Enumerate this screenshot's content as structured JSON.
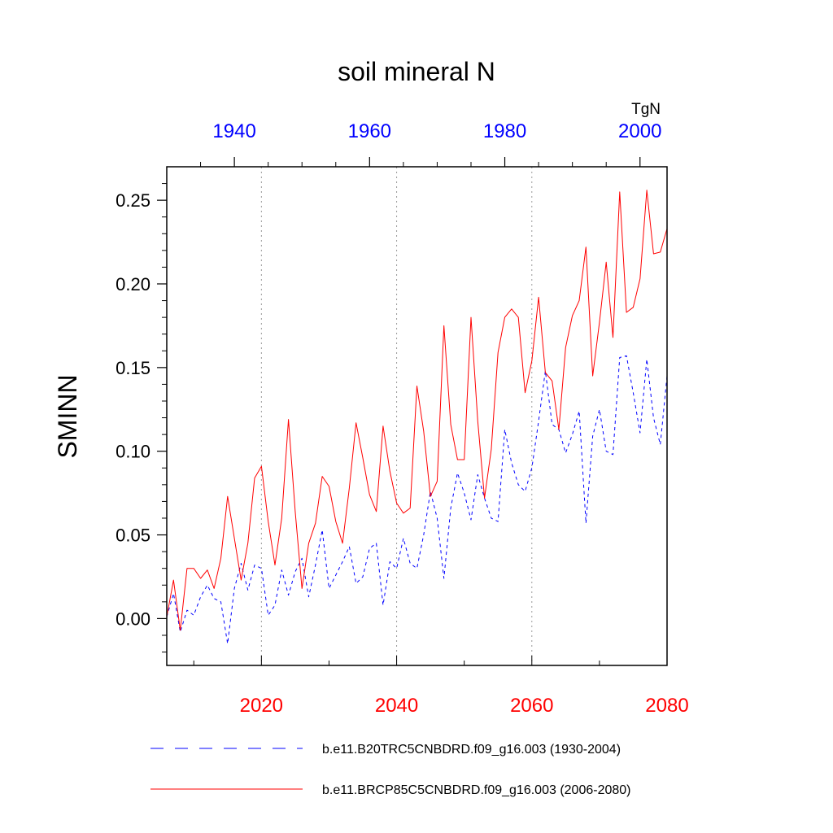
{
  "chart_data": {
    "type": "line",
    "title": "soil mineral N",
    "ylabel": "SMINN",
    "units": "TgN",
    "ylim": [
      -0.028,
      0.27
    ],
    "yticks": [
      0.0,
      0.05,
      0.1,
      0.15,
      0.2,
      0.25
    ],
    "ytick_labels": [
      "0.00",
      "0.05",
      "0.10",
      "0.15",
      "0.20",
      "0.25"
    ],
    "bottom_axis": {
      "range": [
        2006,
        2080
      ],
      "ticks": [
        2020,
        2040,
        2060,
        2080
      ],
      "tick_labels": [
        "2020",
        "2040",
        "2060",
        "2080"
      ],
      "color": "#ff0000"
    },
    "top_axis": {
      "range": [
        1930,
        2004
      ],
      "ticks": [
        1940,
        1960,
        1980,
        2000
      ],
      "tick_labels": [
        "1940",
        "1960",
        "1980",
        "2000"
      ],
      "color": "#0000ff"
    },
    "grid": "vertical dotted at bottom-axis ticks",
    "series": [
      {
        "name": "b.e11.B20TRC5CNBDRD.f09_g16.003 (1930-2004)",
        "axis": "top",
        "color": "#0000ff",
        "style": "dashed",
        "x_start": 1930,
        "values": [
          0.001,
          0.015,
          -0.008,
          0.005,
          0.002,
          0.013,
          0.02,
          0.012,
          0.01,
          -0.015,
          0.018,
          0.033,
          0.017,
          0.032,
          0.03,
          0.002,
          0.008,
          0.029,
          0.014,
          0.028,
          0.036,
          0.013,
          0.032,
          0.053,
          0.018,
          0.026,
          0.034,
          0.043,
          0.021,
          0.025,
          0.042,
          0.045,
          0.008,
          0.034,
          0.03,
          0.048,
          0.033,
          0.03,
          0.05,
          0.076,
          0.06,
          0.024,
          0.066,
          0.087,
          0.075,
          0.059,
          0.086,
          0.072,
          0.06,
          0.058,
          0.113,
          0.093,
          0.08,
          0.076,
          0.09,
          0.118,
          0.148,
          0.116,
          0.113,
          0.099,
          0.11,
          0.124,
          0.057,
          0.109,
          0.125,
          0.1,
          0.098,
          0.156,
          0.157,
          0.135,
          0.111,
          0.155,
          0.12,
          0.104,
          0.145
        ]
      },
      {
        "name": "b.e11.BRCP85C5CNBDRD.f09_g16.003 (2006-2080)",
        "axis": "bottom",
        "color": "#ff0000",
        "style": "solid",
        "x_start": 2006,
        "values": [
          0.001,
          0.023,
          -0.007,
          0.03,
          0.03,
          0.024,
          0.029,
          0.018,
          0.036,
          0.073,
          0.048,
          0.023,
          0.045,
          0.084,
          0.091,
          0.058,
          0.032,
          0.06,
          0.119,
          0.064,
          0.018,
          0.045,
          0.057,
          0.085,
          0.079,
          0.058,
          0.045,
          0.078,
          0.117,
          0.096,
          0.074,
          0.064,
          0.115,
          0.088,
          0.069,
          0.063,
          0.066,
          0.139,
          0.112,
          0.073,
          0.082,
          0.175,
          0.116,
          0.095,
          0.095,
          0.18,
          0.118,
          0.072,
          0.101,
          0.159,
          0.18,
          0.185,
          0.18,
          0.135,
          0.154,
          0.192,
          0.147,
          0.142,
          0.113,
          0.162,
          0.181,
          0.19,
          0.222,
          0.145,
          0.177,
          0.213,
          0.168,
          0.255,
          0.183,
          0.186,
          0.203,
          0.256,
          0.218,
          0.219,
          0.233
        ]
      }
    ],
    "legend": {
      "placement": "bottom",
      "entries": [
        {
          "label": "b.e11.B20TRC5CNBDRD.f09_g16.003 (1930-2004)",
          "color": "#0000ff",
          "style": "dashed"
        },
        {
          "label": "b.e11.BRCP85C5CNBDRD.f09_g16.003 (2006-2080)",
          "color": "#ff0000",
          "style": "solid"
        }
      ]
    }
  }
}
